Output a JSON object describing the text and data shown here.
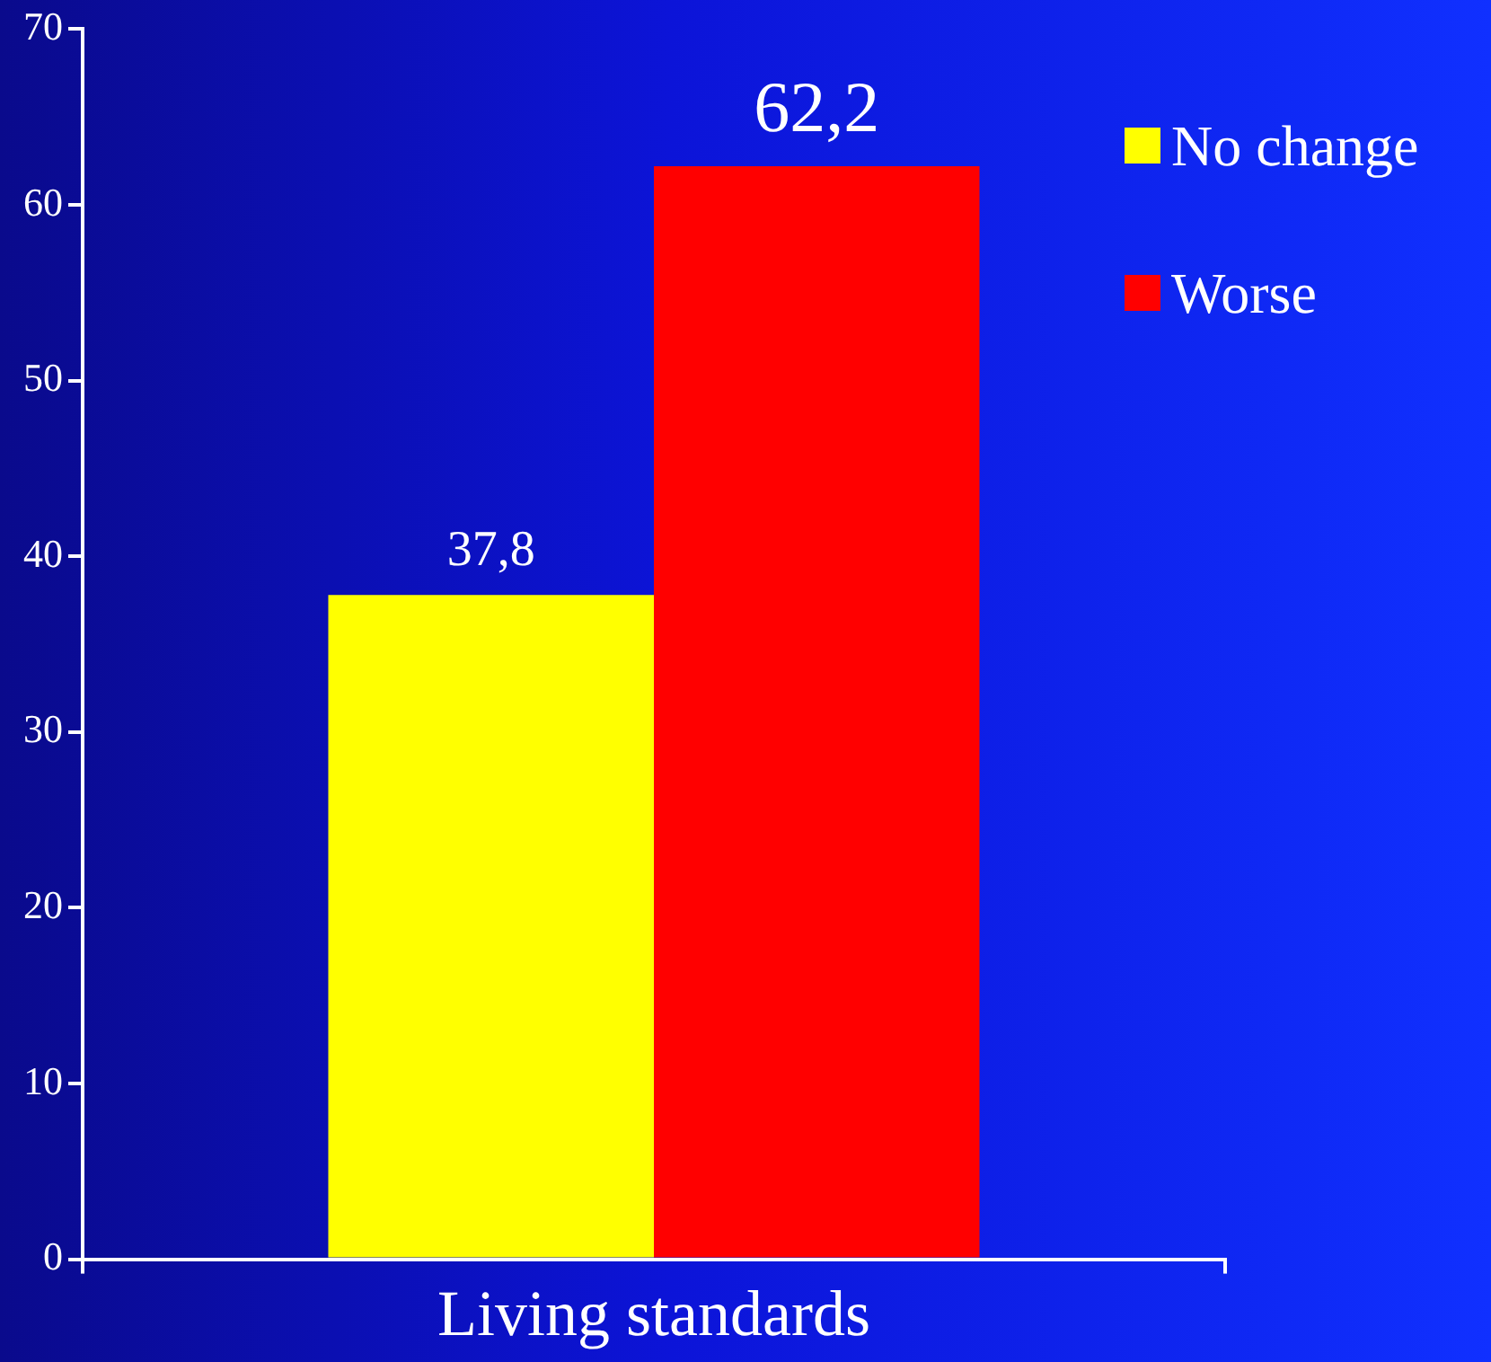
{
  "chart_data": {
    "type": "bar",
    "categories": [
      "Living standards"
    ],
    "series": [
      {
        "name": "No change",
        "color": "#ffff00",
        "values": [
          37.8
        ],
        "value_labels": [
          "37,8"
        ]
      },
      {
        "name": "Worse",
        "color": "#ff0000",
        "values": [
          62.2
        ],
        "value_labels": [
          "62,2"
        ]
      }
    ],
    "ylim": [
      0,
      70
    ],
    "yticks": [
      0,
      10,
      20,
      30,
      40,
      50,
      60,
      70
    ],
    "grid": false,
    "legend": "top right"
  }
}
